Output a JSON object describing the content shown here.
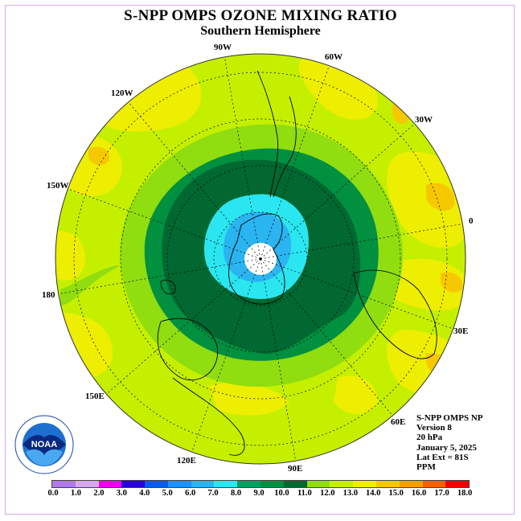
{
  "title": "S-NPP OMPS OZONE MIXING RATIO",
  "subtitle": "Southern Hemisphere",
  "longitudes": {
    "lon_90w": "90W",
    "lon_60w": "60W",
    "lon_30w": "30W",
    "lon_0": "0",
    "lon_30e": "30E",
    "lon_60e": "60E",
    "lon_90e": "90E",
    "lon_120e": "120E",
    "lon_150e": "150E",
    "lon_180": "180",
    "lon_150w": "150W",
    "lon_120w": "120W"
  },
  "info": {
    "instrument": "S-NPP OMPS NP",
    "version": "Version 8",
    "level": "20 hPa",
    "date": "January 5, 2025",
    "lat_ext": "Lat Ext = 81S",
    "units": "PPM"
  },
  "logo": {
    "text": "NOAA"
  },
  "legend": {
    "ticks": [
      "0.0",
      "1.0",
      "2.0",
      "3.0",
      "4.0",
      "5.0",
      "6.0",
      "7.0",
      "8.0",
      "9.0",
      "10.0",
      "11.0",
      "12.0",
      "13.0",
      "14.0",
      "15.0",
      "16.0",
      "17.0",
      "18.0"
    ],
    "colors": [
      "#b07ae8",
      "#d8a8ee",
      "#ee00ee",
      "#2a00dd",
      "#0a5aee",
      "#1e90ff",
      "#2ab4f0",
      "#2ae6f0",
      "#00a060",
      "#009040",
      "#006830",
      "#90dd10",
      "#c4f000",
      "#eeee00",
      "#f5c800",
      "#f5a000",
      "#f56000",
      "#f00000",
      "#805030"
    ]
  },
  "map_colors": {
    "band_11": "#90dd10",
    "band_12": "#c4f000",
    "band_13": "#eeee00",
    "band_14": "#f5c800",
    "band_10": "#006830",
    "band_9": "#009040",
    "band_8": "#2ae6f0",
    "band_6": "#2ab4f0",
    "pole": "#ffffff"
  }
}
